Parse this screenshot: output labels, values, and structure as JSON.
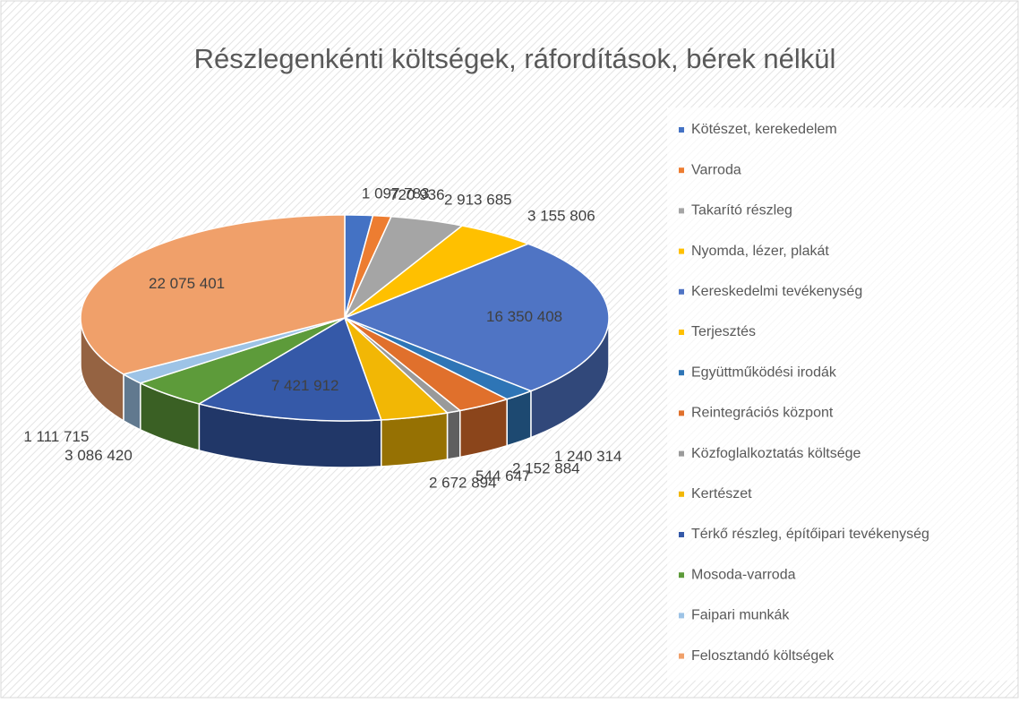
{
  "chart_data": {
    "type": "pie3d",
    "title": "Részlegenkénti költségek, ráfordítások, bérek nélkül",
    "categories": [
      "Kötészet, kerekedelem",
      "Varroda",
      "Takarító részleg",
      "Nyomda, lézer, plakát",
      "Kereskedelmi tevékenység",
      "Terjesztés",
      "Együttműködési irodák",
      "Reintegrációs központ",
      "Közfoglalkoztatás költsége",
      "Kertészet",
      "Térkő részleg, építőipari tevékenység",
      "Mosoda-varroda",
      "Faipari munkák",
      "Felosztandó költségek"
    ],
    "values": [
      1097783,
      720936,
      2913685,
      3155806,
      16350408,
      0,
      1240314,
      2152884,
      544647,
      2672894,
      7421912,
      3086420,
      1111715,
      22075401
    ],
    "value_labels": [
      "1 097 783",
      "720 936",
      "2 913 685",
      "3 155 806",
      "16 350 408",
      null,
      "1 240 314",
      "2 152 884",
      "544 647",
      "2 672 894",
      "7 421 912",
      "3 086 420",
      "1 111 715",
      "22 075 401"
    ],
    "colors": [
      "#4472c4",
      "#ed7d31",
      "#a5a5a5",
      "#ffc000",
      "#4f74c4",
      "#ffc000",
      "#2e75b6",
      "#e0702c",
      "#9a9a9a",
      "#f2b705",
      "#3559a8",
      "#5d9b3a",
      "#9dc3e6",
      "#f0a06a"
    ],
    "legend": "right"
  }
}
